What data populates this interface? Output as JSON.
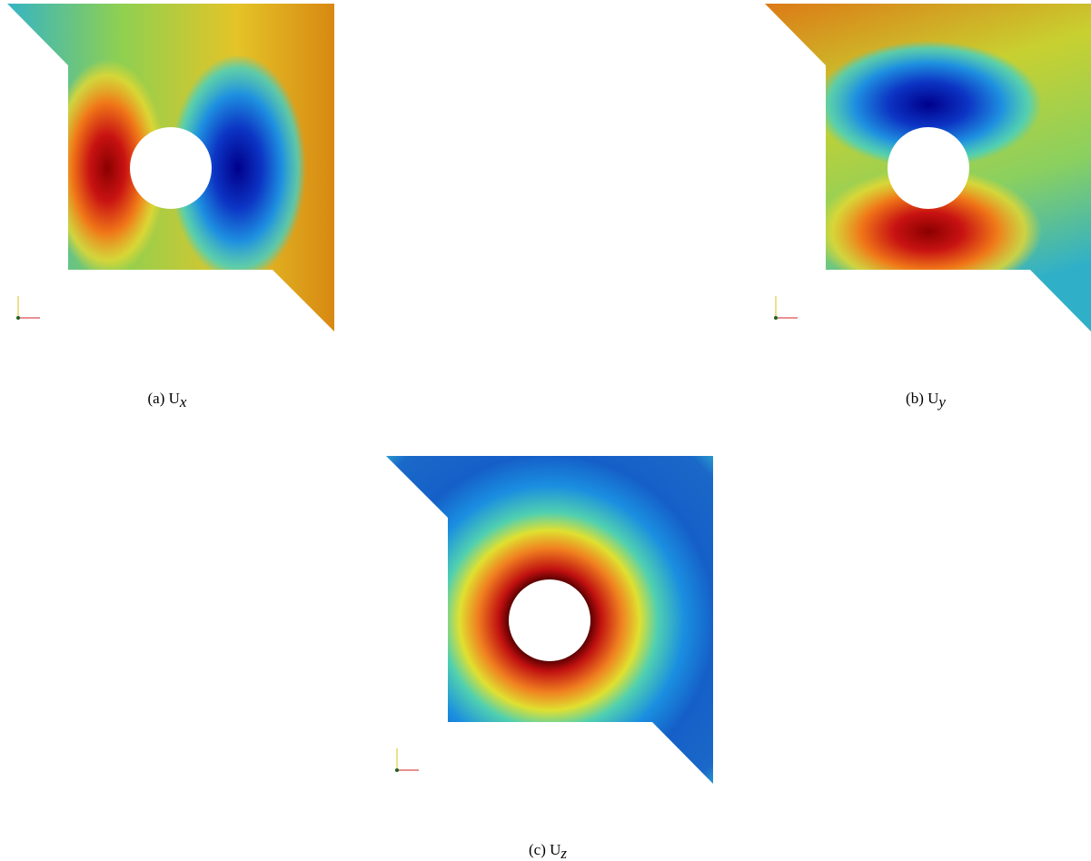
{
  "figures": [
    {
      "label": "(a)",
      "symbol": "U",
      "subscript": "x"
    },
    {
      "label": "(b)",
      "symbol": "U",
      "subscript": "y"
    },
    {
      "label": "(c)",
      "symbol": "U",
      "subscript": "z"
    }
  ]
}
